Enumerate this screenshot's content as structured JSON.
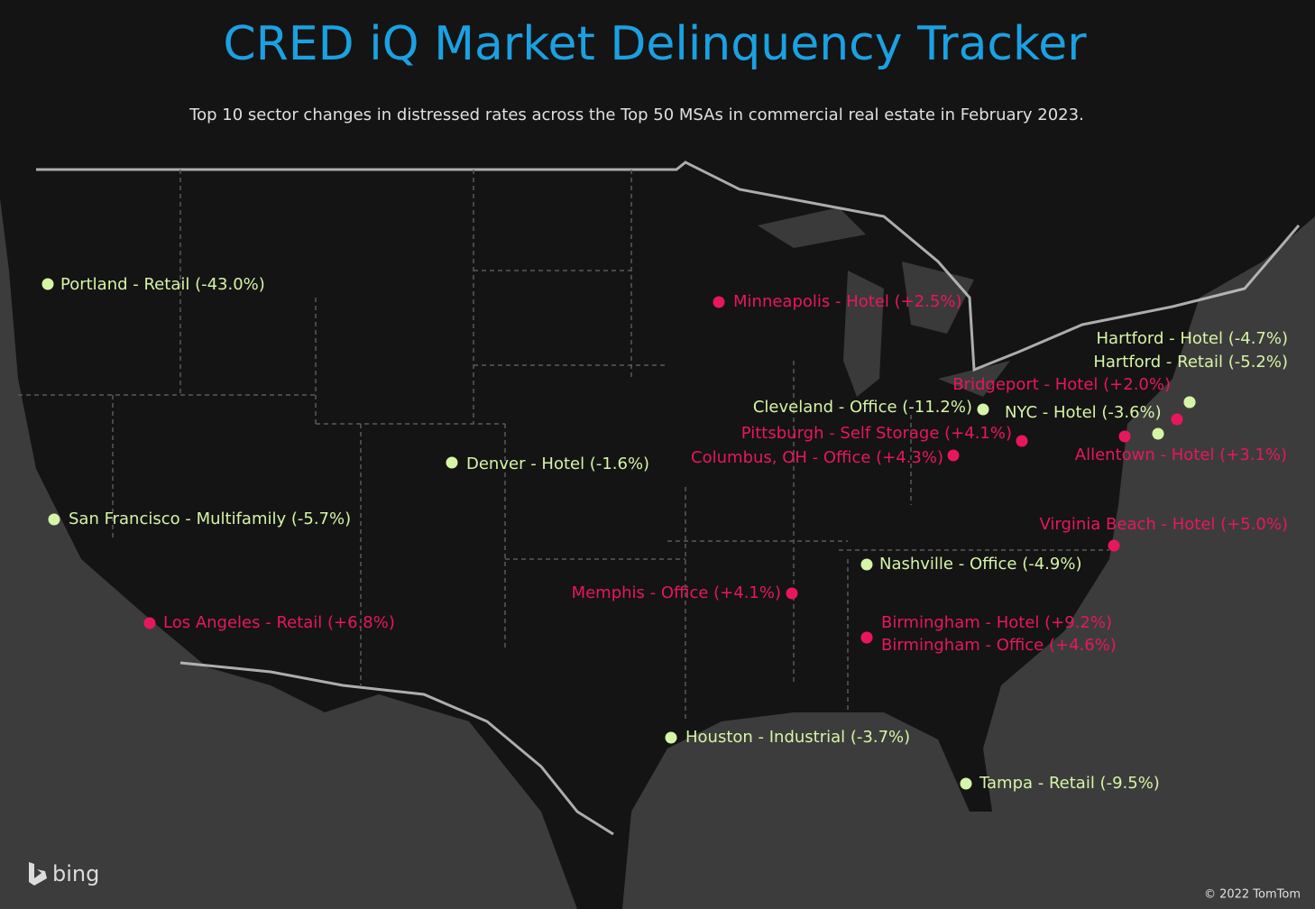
{
  "title": "CRED iQ Market Delinquency Tracker",
  "subtitle": "Top 10 sector changes in distressed rates across the Top 50 MSAs in commercial real estate in February 2023.",
  "markers": [
    {
      "label": "Portland - Retail (-43.0%)",
      "color": "#d6f5a6"
    },
    {
      "label": "Minneapolis - Hotel (+2.5%)",
      "color": "#e8175d"
    },
    {
      "label": "Hartford - Hotel (-4.7%)",
      "color": "#d6f5a6"
    },
    {
      "label": "Hartford - Retail (-5.2%)",
      "color": "#d6f5a6"
    },
    {
      "label": "Bridgeport - Hotel (+2.0%)",
      "color": "#e8175d"
    },
    {
      "label": "Cleveland - Office (-11.2%)",
      "color": "#d6f5a6"
    },
    {
      "label": "NYC - Hotel (-3.6%)",
      "color": "#d6f5a6"
    },
    {
      "label": "Pittsburgh - Self Storage (+4.1%)",
      "color": "#e8175d"
    },
    {
      "label": "Columbus, OH - Office (+4.3%)",
      "color": "#e8175d"
    },
    {
      "label": "Allentown - Hotel (+3.1%)",
      "color": "#e8175d"
    },
    {
      "label": "Denver - Hotel (-1.6%)",
      "color": "#d6f5a6"
    },
    {
      "label": "San Francisco - Multifamily (-5.7%)",
      "color": "#d6f5a6"
    },
    {
      "label": "Virginia Beach - Hotel (+5.0%)",
      "color": "#e8175d"
    },
    {
      "label": "Nashville - Office (-4.9%)",
      "color": "#d6f5a6"
    },
    {
      "label": "Memphis - Office (+4.1%)",
      "color": "#e8175d"
    },
    {
      "label": "Los Angeles - Retail (+6.8%)",
      "color": "#e8175d"
    },
    {
      "label": "Birmingham - Hotel (+9.2%)",
      "color": "#e8175d"
    },
    {
      "label": "Birmingham - Office (+4.6%)",
      "color": "#e8175d"
    },
    {
      "label": "Houston - Industrial (-3.7%)",
      "color": "#d6f5a6"
    },
    {
      "label": "Tampa - Retail (-9.5%)",
      "color": "#d6f5a6"
    }
  ],
  "logo": "bing",
  "copyright": "© 2022 TomTom"
}
